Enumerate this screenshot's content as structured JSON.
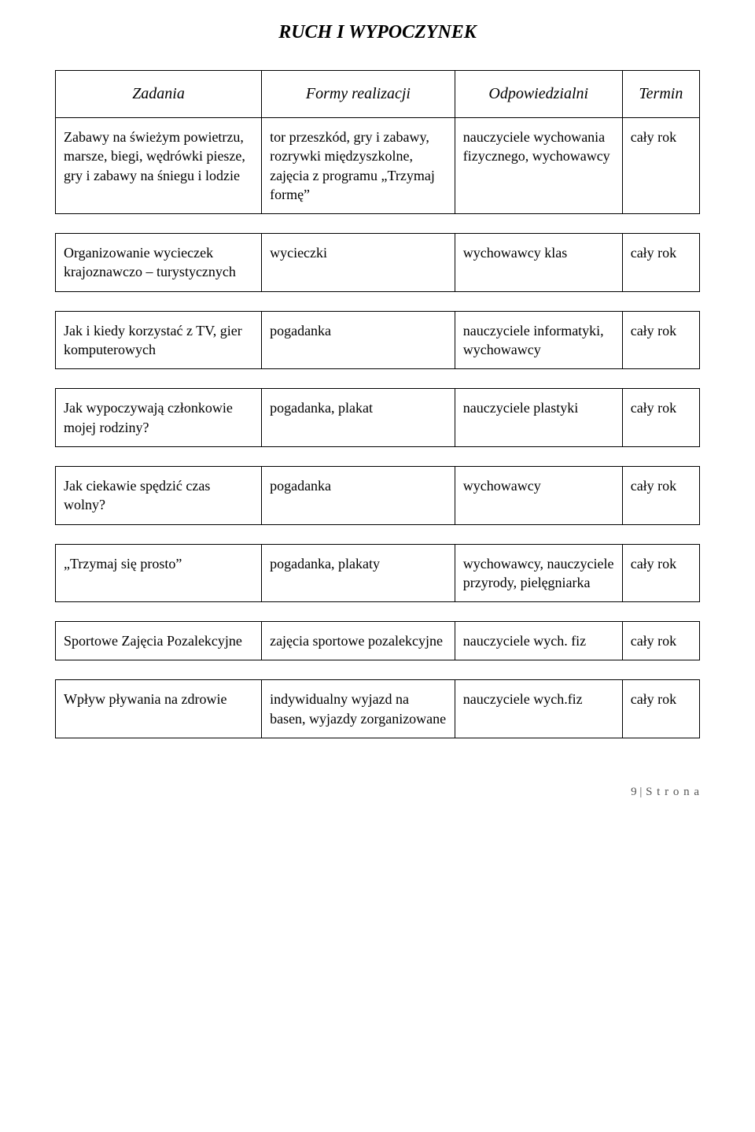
{
  "title": "RUCH I WYPOCZYNEK",
  "headers": [
    "Zadania",
    "Formy realizacji",
    "Odpowiedzialni",
    "Termin"
  ],
  "rows": [
    {
      "zadania": "Zabawy na świeżym powietrzu, marsze, biegi, wędrówki piesze, gry i zabawy na śniegu i lodzie",
      "formy": "tor przeszkód, gry i zabawy, rozrywki międzyszkolne, zajęcia z programu „Trzymaj formę”",
      "odp": "nauczyciele wychowania fizycznego, wychowawcy",
      "termin": "cały rok"
    },
    {
      "zadania": "Organizowanie wycieczek krajoznawczo – turystycznych",
      "formy": "wycieczki",
      "odp": "wychowawcy klas",
      "termin": "cały rok"
    },
    {
      "zadania": "Jak i kiedy korzystać z TV, gier komputerowych",
      "formy": "pogadanka",
      "odp": "nauczyciele informatyki, wychowawcy",
      "termin": "cały rok"
    },
    {
      "zadania": "Jak wypoczywają członkowie mojej rodziny?",
      "formy": "pogadanka, plakat",
      "odp": "nauczyciele plastyki",
      "termin": "cały rok"
    },
    {
      "zadania": "Jak ciekawie spędzić czas wolny?",
      "formy": "pogadanka",
      "odp": "wychowawcy",
      "termin": "cały rok"
    },
    {
      "zadania": "„Trzymaj się prosto”",
      "formy": "pogadanka, plakaty",
      "odp": "wychowawcy, nauczyciele przyrody, pielęgniarka",
      "termin": "cały rok"
    },
    {
      "zadania": "Sportowe Zajęcia Pozalekcyjne",
      "formy": "zajęcia sportowe pozalekcyjne",
      "odp": "nauczyciele wych. fiz",
      "termin": "cały rok"
    },
    {
      "zadania": "Wpływ pływania na zdrowie",
      "formy": "indywidualny wyjazd na basen, wyjazdy zorganizowane",
      "odp": "nauczyciele wych.fiz",
      "termin": "cały rok"
    }
  ],
  "footer": {
    "prefix": "9 |",
    "label": "S t r o n a"
  }
}
